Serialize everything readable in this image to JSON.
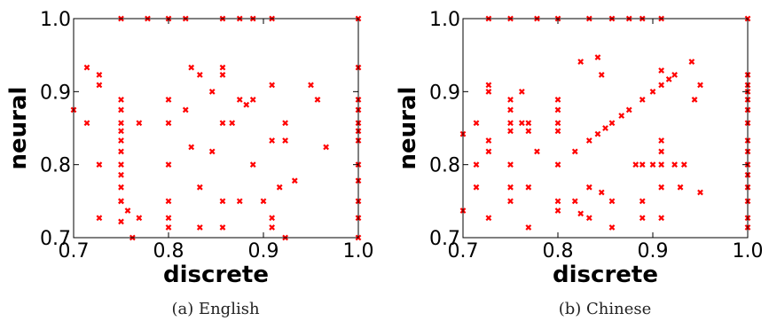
{
  "chart_data": [
    {
      "type": "scatter",
      "caption": "(a) English",
      "xlabel": "discrete",
      "ylabel": "neural",
      "xlim": [
        0.7,
        1.0
      ],
      "ylim": [
        0.7,
        1.0
      ],
      "xticks": [
        0.7,
        0.8,
        0.9,
        1.0
      ],
      "yticks": [
        0.7,
        0.8,
        0.9,
        1.0
      ],
      "xtick_labels": [
        "0.7",
        "0.8",
        "0.9",
        "1.0"
      ],
      "ytick_labels": [
        "0.7",
        "0.8",
        "0.9",
        "1.0"
      ],
      "grid": false,
      "marker_color": "#ff0000",
      "points": [
        [
          0.7,
          0.875
        ],
        [
          0.714,
          0.933
        ],
        [
          0.714,
          0.857
        ],
        [
          0.727,
          0.923
        ],
        [
          0.727,
          0.909
        ],
        [
          0.727,
          0.8
        ],
        [
          0.727,
          0.727
        ],
        [
          0.75,
          1.0
        ],
        [
          0.75,
          0.889
        ],
        [
          0.75,
          0.875
        ],
        [
          0.75,
          0.857
        ],
        [
          0.75,
          0.846
        ],
        [
          0.75,
          0.833
        ],
        [
          0.75,
          0.818
        ],
        [
          0.75,
          0.8
        ],
        [
          0.75,
          0.786
        ],
        [
          0.75,
          0.769
        ],
        [
          0.75,
          0.75
        ],
        [
          0.75,
          0.722
        ],
        [
          0.75,
          0.75
        ],
        [
          0.757,
          0.737
        ],
        [
          0.762,
          0.7
        ],
        [
          0.769,
          0.857
        ],
        [
          0.769,
          0.727
        ],
        [
          0.778,
          1.0
        ],
        [
          0.8,
          1.0
        ],
        [
          0.8,
          0.889
        ],
        [
          0.8,
          0.857
        ],
        [
          0.8,
          0.8
        ],
        [
          0.8,
          0.727
        ],
        [
          0.8,
          0.714
        ],
        [
          0.8,
          0.75
        ],
        [
          0.818,
          1.0
        ],
        [
          0.818,
          0.875
        ],
        [
          0.824,
          0.933
        ],
        [
          0.824,
          0.824
        ],
        [
          0.833,
          0.923
        ],
        [
          0.833,
          0.769
        ],
        [
          0.833,
          0.714
        ],
        [
          0.846,
          0.9
        ],
        [
          0.846,
          0.818
        ],
        [
          0.857,
          1.0
        ],
        [
          0.857,
          0.933
        ],
        [
          0.857,
          0.923
        ],
        [
          0.857,
          0.857
        ],
        [
          0.857,
          0.75
        ],
        [
          0.857,
          0.714
        ],
        [
          0.867,
          0.857
        ],
        [
          0.875,
          1.0
        ],
        [
          0.875,
          0.889
        ],
        [
          0.875,
          0.75
        ],
        [
          0.882,
          0.882
        ],
        [
          0.889,
          1.0
        ],
        [
          0.889,
          0.889
        ],
        [
          0.889,
          0.8
        ],
        [
          0.9,
          0.75
        ],
        [
          0.909,
          1.0
        ],
        [
          0.909,
          0.909
        ],
        [
          0.909,
          0.833
        ],
        [
          0.909,
          0.727
        ],
        [
          0.909,
          0.714
        ],
        [
          0.917,
          0.769
        ],
        [
          0.923,
          0.857
        ],
        [
          0.923,
          0.833
        ],
        [
          0.923,
          0.7
        ],
        [
          0.933,
          0.778
        ],
        [
          0.95,
          0.909
        ],
        [
          0.957,
          0.889
        ],
        [
          0.966,
          0.824
        ],
        [
          1.0,
          1.0
        ],
        [
          1.0,
          0.933
        ],
        [
          1.0,
          0.889
        ],
        [
          1.0,
          0.875
        ],
        [
          1.0,
          0.857
        ],
        [
          1.0,
          0.846
        ],
        [
          1.0,
          0.833
        ],
        [
          1.0,
          0.8
        ],
        [
          1.0,
          0.778
        ],
        [
          1.0,
          0.75
        ],
        [
          1.0,
          0.727
        ],
        [
          1.0,
          0.7
        ]
      ]
    },
    {
      "type": "scatter",
      "caption": "(b) Chinese",
      "xlabel": "discrete",
      "ylabel": "neural",
      "xlim": [
        0.7,
        1.0
      ],
      "ylim": [
        0.7,
        1.0
      ],
      "xticks": [
        0.7,
        0.8,
        0.9,
        1.0
      ],
      "yticks": [
        0.7,
        0.8,
        0.9,
        1.0
      ],
      "xtick_labels": [
        "0.7",
        "0.8",
        "0.9",
        "1.0"
      ],
      "ytick_labels": [
        "0.7",
        "0.8",
        "0.9",
        "1.0"
      ],
      "grid": false,
      "marker_color": "#ff0000",
      "points": [
        [
          0.7,
          0.842
        ],
        [
          0.7,
          0.737
        ],
        [
          0.714,
          0.8
        ],
        [
          0.714,
          0.769
        ],
        [
          0.714,
          0.857
        ],
        [
          0.727,
          1.0
        ],
        [
          0.727,
          0.909
        ],
        [
          0.727,
          0.9
        ],
        [
          0.727,
          0.833
        ],
        [
          0.727,
          0.818
        ],
        [
          0.727,
          0.727
        ],
        [
          0.75,
          1.0
        ],
        [
          0.75,
          0.889
        ],
        [
          0.75,
          0.875
        ],
        [
          0.75,
          0.857
        ],
        [
          0.75,
          0.846
        ],
        [
          0.75,
          0.8
        ],
        [
          0.75,
          0.769
        ],
        [
          0.75,
          0.75
        ],
        [
          0.762,
          0.9
        ],
        [
          0.762,
          0.857
        ],
        [
          0.769,
          0.857
        ],
        [
          0.769,
          0.846
        ],
        [
          0.769,
          0.769
        ],
        [
          0.769,
          0.714
        ],
        [
          0.778,
          1.0
        ],
        [
          0.778,
          0.818
        ],
        [
          0.8,
          1.0
        ],
        [
          0.8,
          0.889
        ],
        [
          0.8,
          0.875
        ],
        [
          0.8,
          0.857
        ],
        [
          0.8,
          0.846
        ],
        [
          0.8,
          0.8
        ],
        [
          0.8,
          0.75
        ],
        [
          0.8,
          0.737
        ],
        [
          0.818,
          0.818
        ],
        [
          0.818,
          0.75
        ],
        [
          0.824,
          0.941
        ],
        [
          0.824,
          0.733
        ],
        [
          0.833,
          1.0
        ],
        [
          0.833,
          0.833
        ],
        [
          0.833,
          0.769
        ],
        [
          0.833,
          0.727
        ],
        [
          0.842,
          0.947
        ],
        [
          0.842,
          0.842
        ],
        [
          0.846,
          0.923
        ],
        [
          0.846,
          0.762
        ],
        [
          0.85,
          0.85
        ],
        [
          0.857,
          1.0
        ],
        [
          0.857,
          0.857
        ],
        [
          0.857,
          0.75
        ],
        [
          0.857,
          0.714
        ],
        [
          0.867,
          0.867
        ],
        [
          0.875,
          1.0
        ],
        [
          0.875,
          0.875
        ],
        [
          0.882,
          0.8
        ],
        [
          0.889,
          1.0
        ],
        [
          0.889,
          0.889
        ],
        [
          0.889,
          0.8
        ],
        [
          0.889,
          0.75
        ],
        [
          0.889,
          0.727
        ],
        [
          0.9,
          0.9
        ],
        [
          0.9,
          0.8
        ],
        [
          0.909,
          1.0
        ],
        [
          0.909,
          0.929
        ],
        [
          0.909,
          0.909
        ],
        [
          0.909,
          0.833
        ],
        [
          0.909,
          0.818
        ],
        [
          0.909,
          0.8
        ],
        [
          0.909,
          0.769
        ],
        [
          0.909,
          0.727
        ],
        [
          0.917,
          0.917
        ],
        [
          0.923,
          0.923
        ],
        [
          0.923,
          0.8
        ],
        [
          0.929,
          0.769
        ],
        [
          0.933,
          0.8
        ],
        [
          0.941,
          0.941
        ],
        [
          0.944,
          0.889
        ],
        [
          0.95,
          0.909
        ],
        [
          0.95,
          0.762
        ],
        [
          1.0,
          1.0
        ],
        [
          1.0,
          0.923
        ],
        [
          1.0,
          0.909
        ],
        [
          1.0,
          0.9
        ],
        [
          1.0,
          0.889
        ],
        [
          1.0,
          0.875
        ],
        [
          1.0,
          0.857
        ],
        [
          1.0,
          0.833
        ],
        [
          1.0,
          0.818
        ],
        [
          1.0,
          0.8
        ],
        [
          1.0,
          0.786
        ],
        [
          1.0,
          0.769
        ],
        [
          1.0,
          0.75
        ],
        [
          1.0,
          0.727
        ],
        [
          1.0,
          0.714
        ]
      ]
    }
  ]
}
